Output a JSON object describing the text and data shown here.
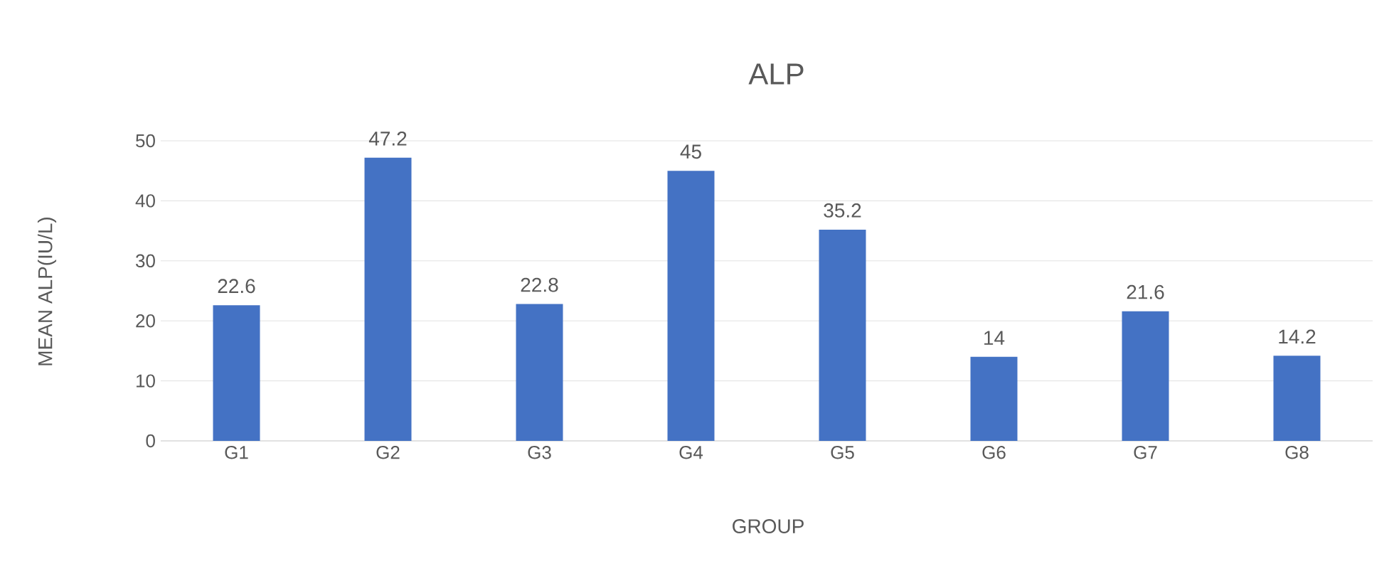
{
  "chart_data": {
    "type": "bar",
    "title": "ALP",
    "xlabel": "GROUP",
    "ylabel": "MEAN ALP(IU/L)",
    "categories": [
      "G1",
      "G2",
      "G3",
      "G4",
      "G5",
      "G6",
      "G7",
      "G8"
    ],
    "values": [
      22.6,
      47.2,
      22.8,
      45,
      35.2,
      14,
      21.6,
      14.2
    ],
    "color": "#4472c4",
    "ylim": [
      0,
      50
    ],
    "yticks": [
      0,
      10,
      20,
      30,
      40,
      50
    ],
    "grid": "y",
    "data_labels": true
  }
}
